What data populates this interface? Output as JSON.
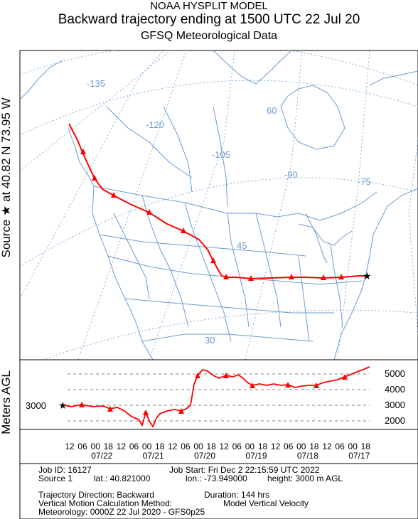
{
  "header": {
    "title_line1": "NOAA HYSPLIT MODEL",
    "title_line2": "Backward trajectory ending at 1500 UTC 22 Jul 20",
    "title_line3": "GFSQ Meteorological Data"
  },
  "side_label": "Source ★ at   40.82 N   73.95 W",
  "map": {
    "longitude_labels": [
      "-135",
      "-120",
      "-105",
      "-90",
      "-75"
    ],
    "latitude_labels": [
      "60",
      "45",
      "30"
    ],
    "colors": {
      "trajectory": "#ff0000",
      "map_lines": "#6b9bd1",
      "grid": "#6b9bd1"
    }
  },
  "height_panel": {
    "ylabel": "Meters AGL",
    "source_height_label": "3000",
    "tick_labels": [
      "5000",
      "4000",
      "3000",
      "2000"
    ]
  },
  "time_axis": {
    "hour_labels": [
      "12",
      "06",
      "00",
      "18",
      "12",
      "06",
      "00",
      "18",
      "12",
      "06",
      "00",
      "18",
      "12",
      "06",
      "00",
      "18",
      "12",
      "06",
      "00",
      "18",
      "12",
      "06",
      "00",
      "18"
    ],
    "date_labels": [
      "07/22",
      "07/21",
      "07/20",
      "07/19",
      "07/18",
      "07/17"
    ]
  },
  "info": {
    "job_id": "Job ID: 16127",
    "job_start": "Job Start: Fri Dec  2 22:15:59 UTC 2022",
    "source": "Source 1",
    "lat": "lat.: 40.821000",
    "lon": "lon.: -73.949000",
    "height": "height: 3000 m AGL",
    "direction": "Trajectory Direction: Backward",
    "duration": "Duration: 144 hrs",
    "vertical_method": "Vertical Motion Calculation Method:",
    "vertical_value": "Model Vertical Velocity",
    "meteorology": "Meteorology: 0000Z 22 Jul 2020 - GFS0p25"
  }
}
